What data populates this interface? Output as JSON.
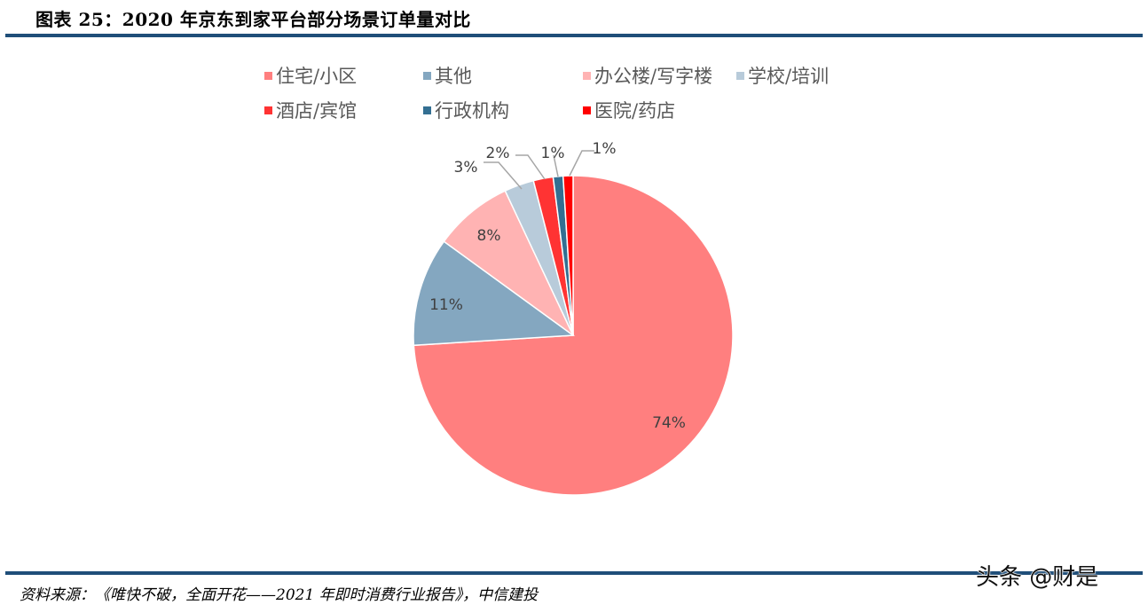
{
  "header": {
    "title": "图表 25：2020 年京东到家平台部分场景订单量对比"
  },
  "footer": {
    "source": "资料来源：《唯快不破，全面开花——2021 年即时消费行业报告》，中信建投",
    "watermark": "头条 @财是"
  },
  "legend": [
    {
      "label": "住宅/小区",
      "color": "#ff7f7f"
    },
    {
      "label": "其他",
      "color": "#84a7c0"
    },
    {
      "label": "办公楼/写字楼",
      "color": "#ffb3b3"
    },
    {
      "label": "学校/培训",
      "color": "#b8cbda"
    },
    {
      "label": "酒店/宾馆",
      "color": "#ff3333"
    },
    {
      "label": "行政机构",
      "color": "#336f92"
    },
    {
      "label": "医院/药店",
      "color": "#ff0000"
    }
  ],
  "chart_data": {
    "type": "pie",
    "title": "2020 年京东到家平台部分场景订单量对比",
    "categories": [
      "住宅/小区",
      "其他",
      "办公楼/写字楼",
      "学校/培训",
      "酒店/宾馆",
      "行政机构",
      "医院/药店"
    ],
    "values": [
      74,
      11,
      8,
      3,
      2,
      1,
      1
    ],
    "labels": [
      "74%",
      "11%",
      "8%",
      "3%",
      "2%",
      "1%",
      "1%"
    ],
    "colors": [
      "#ff7f7f",
      "#84a7c0",
      "#ffb3b3",
      "#b8cbda",
      "#ff3333",
      "#336f92",
      "#ff0000"
    ],
    "start_angle": "12 o'clock",
    "direction": "clockwise",
    "legend_position": "top",
    "unit": "%"
  }
}
